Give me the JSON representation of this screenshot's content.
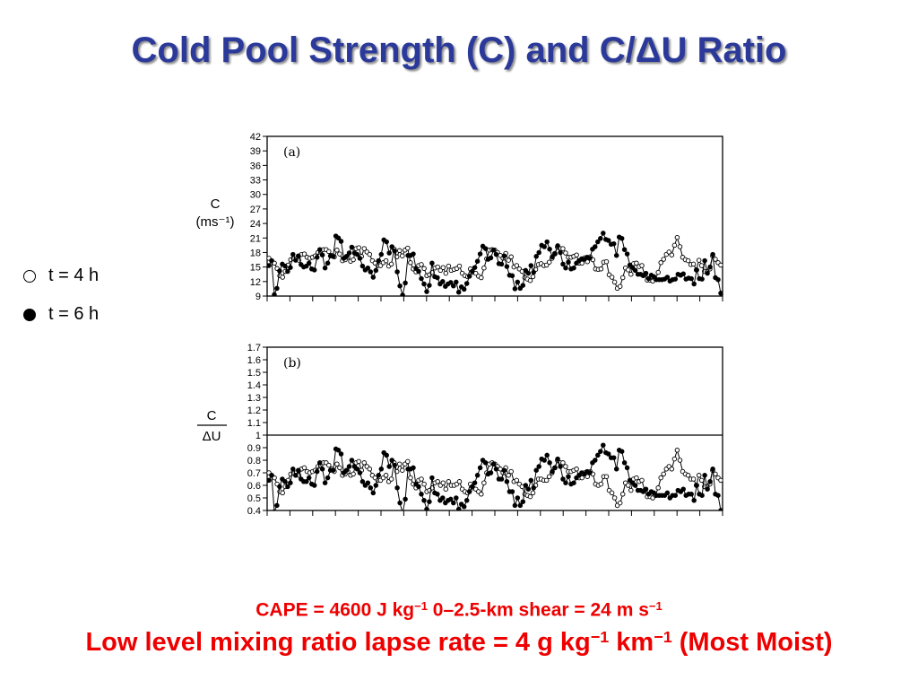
{
  "title": "Cold Pool Strength (C) and C/ΔU Ratio",
  "legend": [
    {
      "label": "t = 4 h",
      "marker": "open-circle"
    },
    {
      "label": "t = 6 h",
      "marker": "filled-circle"
    }
  ],
  "footer": {
    "line1_a": "CAPE = 4600 J kg",
    "line1_sup1": "−1",
    "line1_b": " 0–2.5-km shear = 24 m s",
    "line1_sup2": "−1",
    "line2_a": "Low level mixing ratio lapse rate = 4 g kg",
    "line2_sup1": "−1",
    "line2_b": " km",
    "line2_sup2": "−1",
    "line2_c": " (Most Moist)"
  },
  "colors": {
    "title": "#2b3a9a",
    "footer": "#ee0000",
    "ink": "#000000"
  },
  "chart_data": [
    {
      "type": "line",
      "panel_label": "(a)",
      "ylabel_line1": "C",
      "ylabel_line2": "(ms⁻¹)",
      "ylim": [
        9,
        42
      ],
      "yticks": [
        9,
        12,
        15,
        18,
        21,
        24,
        27,
        30,
        33,
        36,
        39,
        42
      ],
      "reference_line": null,
      "series": [
        {
          "name": "t = 4 h",
          "marker": "open",
          "values": [
            16.8,
            16.3,
            15.8,
            14.7,
            13.2,
            12.9,
            14.1,
            15.4,
            16.5,
            16.8,
            16.7,
            16.4,
            17.6,
            17.7,
            17.0,
            16.8,
            17.0,
            17.3,
            18.0,
            18.3,
            18.6,
            18.6,
            18.2,
            17.4,
            17.1,
            18.5,
            17.7,
            16.3,
            16.5,
            17.0,
            16.2,
            16.5,
            18.8,
            19.0,
            17.2,
            18.8,
            18.1,
            17.6,
            16.3,
            15.8,
            15.3,
            15.3,
            15.9,
            16.3,
            15.2,
            15.6,
            18.7,
            17.1,
            18.4,
            17.3,
            18.5,
            18.9,
            15.9,
            14.6,
            14.0,
            15.3,
            15.5,
            14.7,
            13.2,
            13.4,
            13.9,
            14.8,
            15.0,
            14.3,
            14.9,
            13.7,
            15.2,
            14.3,
            14.5,
            14.7,
            15.2,
            13.7,
            13.2,
            13.0,
            14.6,
            13.9,
            13.7,
            13.1,
            12.8,
            14.8,
            16.7,
            18.5,
            18.6,
            18.5,
            18.0,
            17.4,
            16.8,
            17.8,
            16.4,
            17.1,
            15.0,
            15.3,
            14.6,
            14.1,
            12.8,
            12.5,
            12.2,
            13.0,
            14.5,
            15.5,
            15.7,
            15.3,
            15.4,
            16.0,
            16.8,
            17.8,
            19.1,
            18.8,
            18.8,
            17.9,
            17.0,
            17.0,
            17.2,
            17.5,
            15.8,
            15.8,
            16.9,
            16.1,
            17.1,
            16.5,
            14.6,
            14.5,
            14.6,
            16.0,
            16.1,
            13.4,
            12.9,
            11.9,
            10.6,
            11.0,
            12.8,
            14.8,
            14.4,
            13.5,
            15.7,
            15.8,
            15.1,
            15.3,
            13.4,
            12.3,
            12.3,
            12.1,
            12.5,
            13.9,
            15.9,
            16.6,
            17.6,
            18.1,
            17.5,
            19.5,
            21.1,
            19.2,
            17.0,
            16.5,
            16.3,
            15.5,
            15.6,
            14.4,
            16.4,
            15.3,
            14.1,
            14.1,
            14.6,
            17.3,
            16.6,
            15.9,
            15.4
          ]
        },
        {
          "name": "t = 6 h",
          "marker": "filled",
          "values": [
            15.3,
            16.3,
            9.3,
            10.6,
            14.2,
            15.6,
            15.2,
            14.1,
            14.9,
            17.6,
            16.4,
            17.3,
            15.5,
            15.0,
            15.2,
            15.8,
            14.6,
            14.4,
            17.0,
            18.6,
            17.5,
            14.8,
            15.8,
            17.3,
            17.2,
            21.4,
            21.0,
            20.3,
            16.8,
            17.2,
            17.9,
            19.1,
            17.9,
            17.6,
            16.8,
            15.2,
            14.4,
            14.8,
            14.0,
            12.9,
            14.3,
            16.3,
            17.6,
            20.6,
            20.2,
            17.9,
            19.2,
            18.3,
            14.0,
            11.1,
            9.2,
            11.7,
            17.4,
            17.4,
            17.7,
            14.7,
            14.1,
            12.6,
            11.5,
            9.9,
            11.2,
            15.8,
            13.0,
            12.8,
            11.5,
            12.0,
            11.0,
            11.5,
            11.8,
            11.1,
            11.9,
            9.8,
            10.9,
            10.4,
            11.6,
            13.1,
            14.1,
            14.9,
            16.2,
            17.7,
            19.3,
            18.8,
            16.6,
            16.9,
            18.5,
            17.6,
            15.7,
            15.6,
            17.3,
            15.1,
            13.3,
            13.2,
            10.5,
            11.9,
            10.6,
            11.2,
            14.3,
            13.7,
            15.3,
            13.9,
            17.2,
            18.0,
            19.5,
            19.2,
            20.2,
            18.7,
            17.1,
            17.7,
            19.4,
            18.0,
            15.6,
            14.8,
            16.0,
            14.6,
            14.8,
            15.8,
            16.3,
            16.7,
            16.6,
            17.0,
            16.8,
            18.7,
            19.2,
            20.2,
            20.9,
            22.0,
            20.7,
            20.5,
            19.7,
            19.8,
            17.4,
            21.2,
            20.9,
            18.6,
            17.7,
            15.4,
            14.9,
            14.3,
            13.5,
            13.5,
            13.2,
            13.7,
            12.6,
            13.3,
            13.0,
            12.4,
            12.4,
            12.4,
            12.5,
            12.9,
            12.1,
            12.4,
            12.5,
            13.5,
            13.3,
            13.6,
            12.5,
            12.7,
            12.6,
            11.5,
            14.4,
            12.6,
            12.5,
            16.3,
            13.7,
            15.0,
            17.6,
            12.8,
            12.4,
            9.6
          ]
        }
      ]
    },
    {
      "type": "line",
      "panel_label": "(b)",
      "ylabel_num": "C",
      "ylabel_den": "ΔU",
      "ylim": [
        0.4,
        1.7
      ],
      "yticks": [
        0.4,
        0.5,
        0.6,
        0.7,
        0.8,
        0.9,
        1,
        1.1,
        1.2,
        1.3,
        1.4,
        1.5,
        1.6,
        1.7
      ],
      "reference_line": 1,
      "series": [
        {
          "name": "t = 4 h",
          "marker": "open",
          "values": [
            0.7,
            0.68,
            0.66,
            0.61,
            0.55,
            0.54,
            0.59,
            0.64,
            0.69,
            0.7,
            0.7,
            0.68,
            0.73,
            0.74,
            0.71,
            0.7,
            0.71,
            0.72,
            0.75,
            0.76,
            0.78,
            0.78,
            0.76,
            0.73,
            0.71,
            0.77,
            0.74,
            0.68,
            0.69,
            0.71,
            0.68,
            0.69,
            0.78,
            0.79,
            0.72,
            0.78,
            0.75,
            0.73,
            0.68,
            0.66,
            0.64,
            0.64,
            0.66,
            0.68,
            0.63,
            0.65,
            0.78,
            0.71,
            0.77,
            0.72,
            0.77,
            0.79,
            0.66,
            0.61,
            0.58,
            0.64,
            0.65,
            0.61,
            0.55,
            0.56,
            0.58,
            0.62,
            0.63,
            0.6,
            0.62,
            0.57,
            0.63,
            0.6,
            0.6,
            0.61,
            0.63,
            0.57,
            0.55,
            0.54,
            0.61,
            0.58,
            0.57,
            0.55,
            0.53,
            0.62,
            0.7,
            0.77,
            0.78,
            0.77,
            0.75,
            0.73,
            0.7,
            0.74,
            0.68,
            0.71,
            0.63,
            0.64,
            0.61,
            0.59,
            0.53,
            0.52,
            0.51,
            0.54,
            0.6,
            0.65,
            0.65,
            0.64,
            0.64,
            0.67,
            0.7,
            0.74,
            0.8,
            0.78,
            0.78,
            0.75,
            0.71,
            0.71,
            0.72,
            0.73,
            0.66,
            0.66,
            0.7,
            0.67,
            0.71,
            0.69,
            0.61,
            0.6,
            0.61,
            0.67,
            0.67,
            0.56,
            0.54,
            0.5,
            0.44,
            0.46,
            0.53,
            0.62,
            0.6,
            0.56,
            0.65,
            0.66,
            0.63,
            0.64,
            0.56,
            0.51,
            0.51,
            0.5,
            0.52,
            0.58,
            0.66,
            0.69,
            0.73,
            0.75,
            0.73,
            0.81,
            0.88,
            0.8,
            0.71,
            0.69,
            0.68,
            0.65,
            0.65,
            0.6,
            0.68,
            0.64,
            0.59,
            0.59,
            0.61,
            0.72,
            0.69,
            0.66,
            0.64
          ]
        },
        {
          "name": "t = 6 h",
          "marker": "filled",
          "values": [
            0.64,
            0.68,
            0.39,
            0.44,
            0.59,
            0.65,
            0.63,
            0.59,
            0.62,
            0.73,
            0.68,
            0.72,
            0.65,
            0.63,
            0.63,
            0.66,
            0.61,
            0.6,
            0.71,
            0.78,
            0.73,
            0.62,
            0.66,
            0.72,
            0.72,
            0.89,
            0.88,
            0.85,
            0.7,
            0.72,
            0.75,
            0.8,
            0.75,
            0.73,
            0.7,
            0.63,
            0.6,
            0.62,
            0.58,
            0.54,
            0.6,
            0.68,
            0.73,
            0.86,
            0.84,
            0.75,
            0.8,
            0.76,
            0.58,
            0.46,
            0.38,
            0.49,
            0.73,
            0.73,
            0.74,
            0.61,
            0.59,
            0.53,
            0.48,
            0.41,
            0.47,
            0.66,
            0.54,
            0.53,
            0.48,
            0.5,
            0.46,
            0.48,
            0.49,
            0.46,
            0.5,
            0.41,
            0.45,
            0.43,
            0.48,
            0.55,
            0.59,
            0.62,
            0.68,
            0.74,
            0.8,
            0.78,
            0.69,
            0.7,
            0.77,
            0.73,
            0.65,
            0.65,
            0.72,
            0.63,
            0.55,
            0.55,
            0.44,
            0.5,
            0.44,
            0.47,
            0.6,
            0.57,
            0.64,
            0.58,
            0.72,
            0.75,
            0.81,
            0.8,
            0.84,
            0.78,
            0.71,
            0.74,
            0.81,
            0.75,
            0.65,
            0.62,
            0.67,
            0.61,
            0.62,
            0.66,
            0.68,
            0.7,
            0.69,
            0.71,
            0.7,
            0.78,
            0.8,
            0.84,
            0.87,
            0.92,
            0.86,
            0.85,
            0.82,
            0.82,
            0.73,
            0.88,
            0.87,
            0.78,
            0.74,
            0.64,
            0.62,
            0.6,
            0.56,
            0.56,
            0.55,
            0.57,
            0.53,
            0.55,
            0.54,
            0.52,
            0.52,
            0.52,
            0.52,
            0.54,
            0.5,
            0.52,
            0.52,
            0.56,
            0.55,
            0.57,
            0.52,
            0.53,
            0.53,
            0.48,
            0.6,
            0.53,
            0.52,
            0.68,
            0.57,
            0.63,
            0.73,
            0.53,
            0.52,
            0.4
          ]
        }
      ]
    }
  ]
}
